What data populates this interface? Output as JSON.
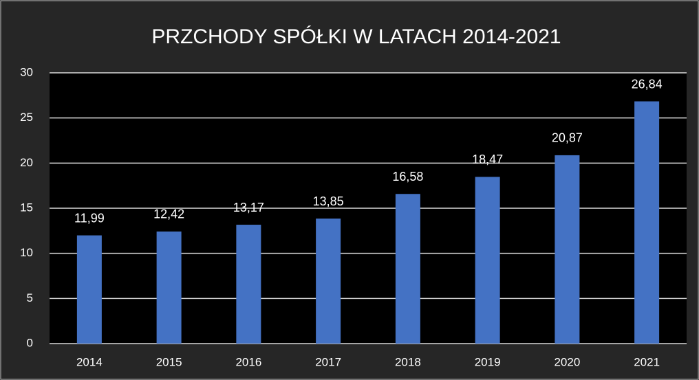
{
  "chart_data": {
    "type": "bar",
    "title": "PRZCHODY SPÓŁKI W LATACH 2014-2021",
    "categories": [
      "2014",
      "2015",
      "2016",
      "2017",
      "2018",
      "2019",
      "2020",
      "2021"
    ],
    "values": [
      11.99,
      12.42,
      13.17,
      13.85,
      16.58,
      18.47,
      20.87,
      26.84
    ],
    "value_labels": [
      "11,99",
      "12,42",
      "13,17",
      "13,85",
      "16,58",
      "18,47",
      "20,87",
      "26,84"
    ],
    "color": "#4472c4",
    "ylim": [
      0,
      30
    ],
    "yticks": [
      0,
      5,
      10,
      15,
      20,
      25,
      30
    ],
    "grid": true
  }
}
